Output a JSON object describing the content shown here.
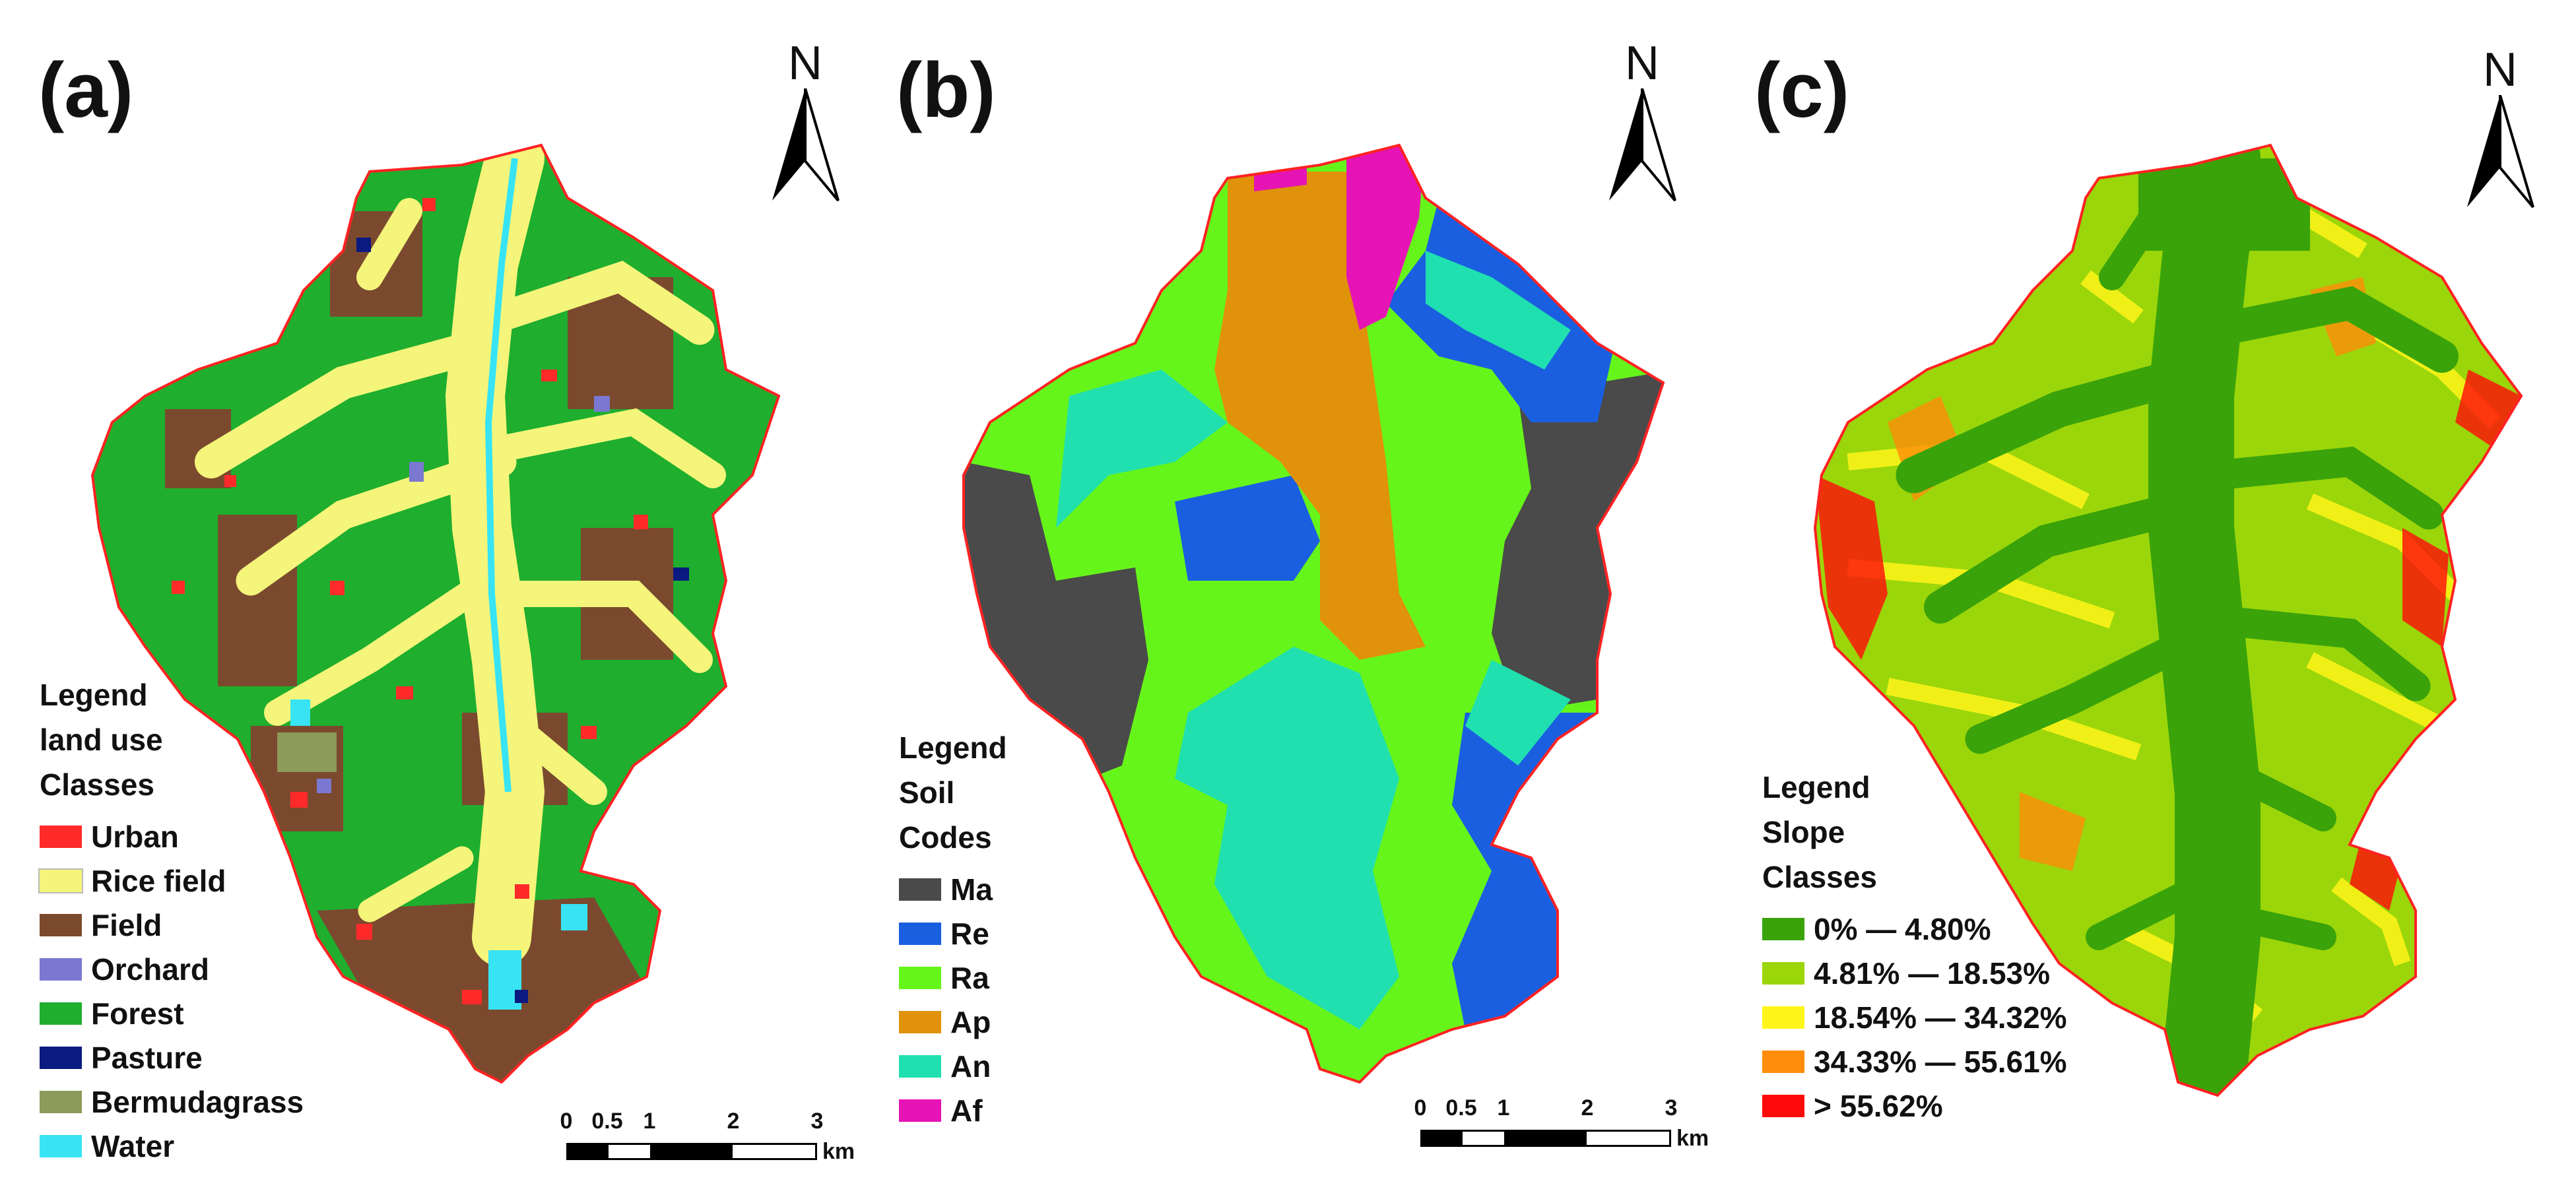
{
  "panels": [
    {
      "label": "(a)",
      "north": "N",
      "legend": {
        "headings": [
          "Legend",
          "land use",
          "Classes"
        ],
        "items": [
          {
            "label": "Urban",
            "color": "#ff2a2a"
          },
          {
            "label": "Rice field",
            "color": "#f4f57a"
          },
          {
            "label": "Field",
            "color": "#7b4a2e"
          },
          {
            "label": "Orchard",
            "color": "#7a78d0"
          },
          {
            "label": "Forest",
            "color": "#1fae2e"
          },
          {
            "label": "Pasture",
            "color": "#0a1a80"
          },
          {
            "label": "Bermudagrass",
            "color": "#8c9a5a"
          },
          {
            "label": "Water",
            "color": "#38e4f4"
          }
        ]
      },
      "scale": {
        "ticks": [
          "0",
          "0.5",
          "1",
          "2",
          "3"
        ],
        "unit": "km"
      }
    },
    {
      "label": "(b)",
      "north": "N",
      "legend": {
        "headings": [
          "Legend",
          "Soil",
          "Codes"
        ],
        "items": [
          {
            "label": "Ma",
            "color": "#4a4a4a"
          },
          {
            "label": "Re",
            "color": "#1a5fe0"
          },
          {
            "label": "Ra",
            "color": "#66f51a"
          },
          {
            "label": "Ap",
            "color": "#e0920a"
          },
          {
            "label": "An",
            "color": "#20e0b0"
          },
          {
            "label": "Af",
            "color": "#e614b4"
          }
        ]
      },
      "scale": {
        "ticks": [
          "0",
          "0.5",
          "1",
          "2",
          "3"
        ],
        "unit": "km"
      }
    },
    {
      "label": "(c)",
      "north": "N",
      "legend": {
        "headings": [
          "Legend",
          "Slope",
          "Classes"
        ],
        "items": [
          {
            "label": "0% — 4.80%",
            "color": "#3aa30a"
          },
          {
            "label": "4.81% — 18.53%",
            "color": "#9bd60a"
          },
          {
            "label": "18.54% — 34.32%",
            "color": "#fff51a"
          },
          {
            "label": "34.33% — 55.61%",
            "color": "#ff8c0a"
          },
          {
            "label": "> 55.62%",
            "color": "#ff0a0a"
          }
        ]
      }
    }
  ]
}
